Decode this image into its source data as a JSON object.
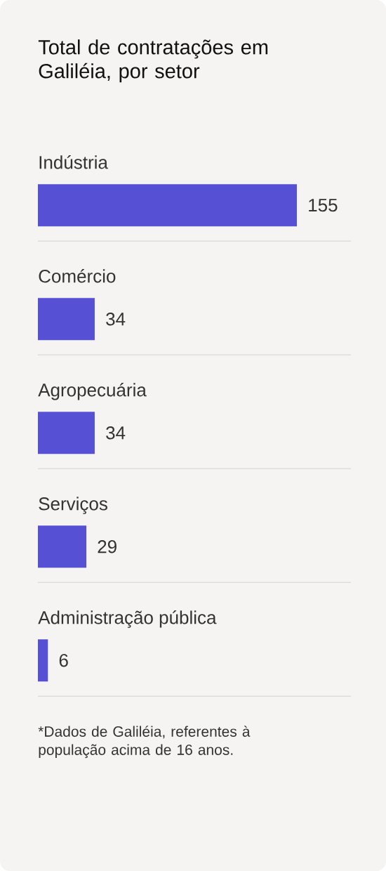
{
  "chart_data": {
    "type": "bar",
    "orientation": "horizontal",
    "title": "Total de contratações em Galiléia, por setor",
    "categories": [
      "Indústria",
      "Comércio",
      "Agropecuária",
      "Serviços",
      "Administração pública"
    ],
    "values": [
      155,
      34,
      34,
      29,
      6
    ],
    "color": "#5650d4",
    "data_labels": true,
    "annotations": [
      "*Dados de Galiléia, referentes à população acima de 16 anos."
    ]
  }
}
